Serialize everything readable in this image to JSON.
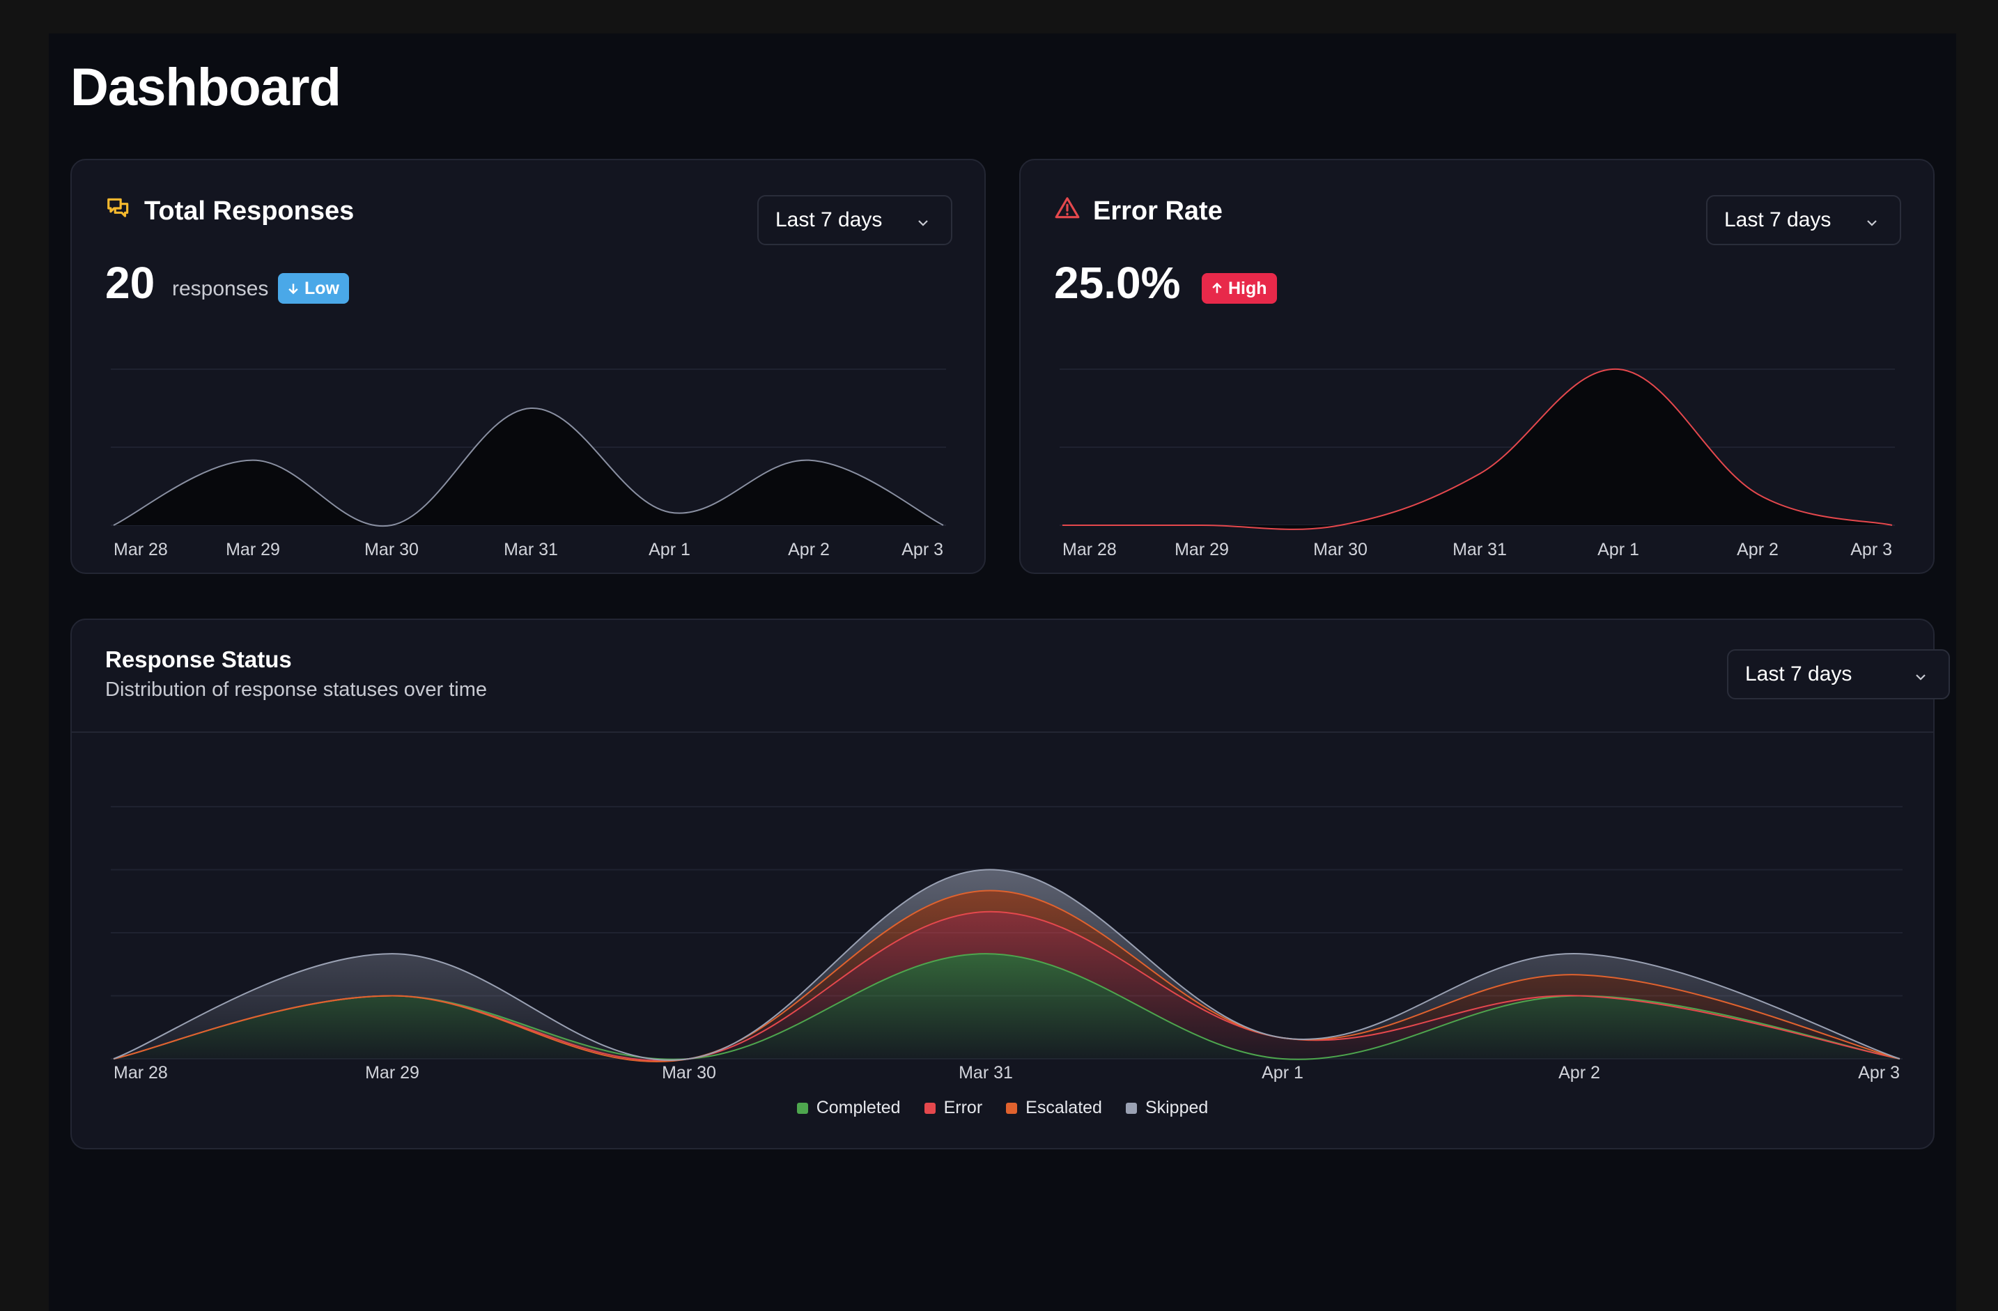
{
  "page": {
    "title": "Dashboard"
  },
  "colors": {
    "completed": "#4ea64e",
    "error": "#e5484d",
    "escalated": "#e0622e",
    "skipped": "#9aa1b3",
    "low_badge": "#4aa8e8",
    "high_badge": "#e8294a"
  },
  "total_responses": {
    "title": "Total Responses",
    "icon": "chat-bubbles-icon",
    "range": "Last 7 days",
    "value": "20",
    "unit": "responses",
    "badge": "Low"
  },
  "error_rate": {
    "title": "Error Rate",
    "icon": "warning-triangle-icon",
    "range": "Last 7 days",
    "value": "25.0%",
    "badge": "High"
  },
  "response_status": {
    "title": "Response Status",
    "subtitle": "Distribution of response statuses over time",
    "range": "Last 7 days"
  },
  "chart_data": [
    {
      "type": "area",
      "title": "Total Responses",
      "categories": [
        "Mar 28",
        "Mar 29",
        "Mar 30",
        "Mar 31",
        "Apr 1",
        "Apr 2",
        "Apr 3"
      ],
      "series": [
        {
          "name": "Responses",
          "values": [
            0,
            5,
            0,
            9,
            1,
            5,
            0
          ]
        }
      ],
      "ylim": [
        0,
        12
      ],
      "grid": true
    },
    {
      "type": "area",
      "title": "Error Rate",
      "categories": [
        "Mar 28",
        "Mar 29",
        "Mar 30",
        "Mar 31",
        "Apr 1",
        "Apr 2",
        "Apr 3"
      ],
      "series": [
        {
          "name": "Error Rate (%)",
          "values": [
            0,
            0,
            0,
            33,
            100,
            20,
            0
          ]
        }
      ],
      "ylim": [
        0,
        100
      ],
      "grid": true
    },
    {
      "type": "area",
      "stacked": true,
      "title": "Response Status",
      "categories": [
        "Mar 28",
        "Mar 29",
        "Mar 30",
        "Mar 31",
        "Apr 1",
        "Apr 2",
        "Apr 3"
      ],
      "series": [
        {
          "name": "Completed",
          "values": [
            0,
            3,
            0,
            5,
            0,
            3,
            0
          ]
        },
        {
          "name": "Error",
          "values": [
            0,
            0,
            0,
            2,
            1,
            0,
            0
          ]
        },
        {
          "name": "Escalated",
          "values": [
            0,
            0,
            0,
            1,
            0,
            1,
            0
          ]
        },
        {
          "name": "Skipped",
          "values": [
            0,
            2,
            0,
            1,
            0,
            1,
            0
          ]
        }
      ],
      "ylim": [
        0,
        12
      ],
      "legend": "bottom-center",
      "grid": true
    }
  ]
}
